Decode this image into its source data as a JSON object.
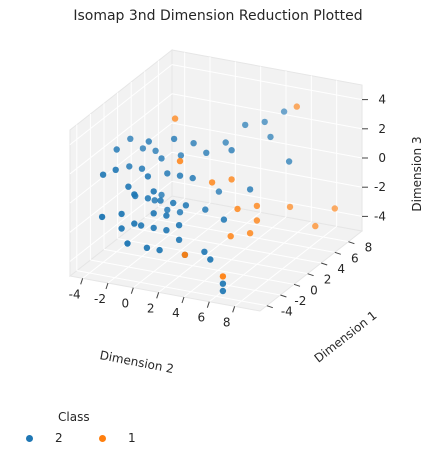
{
  "title": "Isomap 3nd Dimension Reduction Plotted",
  "legend": {
    "title": "Class",
    "entries": [
      {
        "label": "2",
        "color": "#1f77b4"
      },
      {
        "label": "1",
        "color": "#ff7f0e"
      }
    ]
  },
  "chart_data": {
    "type": "scatter",
    "projection": "3d",
    "title": "Isomap 3nd Dimension Reduction Plotted",
    "xlabel": "Dimension 2",
    "ylabel": "Dimension 1",
    "zlabel": "Dimension 3",
    "xlim": [
      -5,
      10
    ],
    "ylim": [
      -5,
      10
    ],
    "zlim": [
      -5,
      5
    ],
    "xticks": [
      -4,
      -2,
      0,
      2,
      4,
      6,
      8
    ],
    "yticks": [
      -4,
      -2,
      0,
      2,
      4,
      6,
      8
    ],
    "zticks": [
      -4,
      -2,
      0,
      2,
      4
    ],
    "grid": true,
    "legend_position": "bottom-left",
    "series": [
      {
        "name": "2",
        "color": "#1f77b4",
        "points": [
          [
            -4,
            2,
            2.0
          ],
          [
            -4,
            0,
            2.0
          ],
          [
            -4,
            -2,
            1.0
          ],
          [
            -3,
            0,
            1.0
          ],
          [
            -3,
            -2,
            1.5
          ],
          [
            -3,
            2,
            1.5
          ],
          [
            -2,
            -2,
            0.5
          ],
          [
            -2,
            0,
            1.0
          ],
          [
            -2,
            2,
            1.5
          ],
          [
            -1,
            -3,
            0.5
          ],
          [
            -1,
            -1,
            1.0
          ],
          [
            -1,
            1,
            1.5
          ],
          [
            0,
            -2,
            0.5
          ],
          [
            0,
            0,
            1.0
          ],
          [
            0,
            2,
            1.5
          ],
          [
            1,
            2,
            2.5
          ],
          [
            1,
            0,
            1.0
          ],
          [
            2,
            0,
            1.0
          ],
          [
            2,
            2,
            2.0
          ],
          [
            3,
            3,
            2.5
          ],
          [
            4,
            4,
            3.5
          ],
          [
            4,
            2,
            2.5
          ],
          [
            5,
            5,
            3.5
          ],
          [
            6,
            4,
            3.0
          ],
          [
            6,
            6,
            4.0
          ],
          [
            -3,
            -4,
            -1.0
          ],
          [
            -2,
            -3,
            -1.0
          ],
          [
            -1,
            -3,
            -1.5
          ],
          [
            0,
            -2,
            -1.0
          ],
          [
            1,
            -2,
            -1.0
          ],
          [
            -2,
            -1,
            -0.5
          ],
          [
            -1,
            -1,
            -0.5
          ],
          [
            0,
            -1,
            -0.5
          ],
          [
            1,
            -1,
            -0.5
          ],
          [
            2,
            -1,
            -0.5
          ],
          [
            -1,
            0,
            -1.0
          ],
          [
            0,
            0,
            -1.5
          ],
          [
            1,
            0,
            -1.5
          ],
          [
            3,
            0,
            -1.0
          ],
          [
            3,
            2,
            -0.5
          ],
          [
            -2,
            -3,
            -2.0
          ],
          [
            -1,
            -2,
            -2.0
          ],
          [
            0,
            -2,
            -2.0
          ],
          [
            1,
            -2,
            -2.0
          ],
          [
            2,
            -2,
            -2.5
          ],
          [
            -1,
            -4,
            -2.5
          ],
          [
            0,
            -3,
            -3.0
          ],
          [
            1,
            -3,
            -3.0
          ],
          [
            3,
            -3,
            -3.0
          ],
          [
            4,
            -2,
            -3.0
          ],
          [
            2,
            -2,
            -1.5
          ],
          [
            5,
            -1,
            -1.0
          ],
          [
            6,
            1,
            0.5
          ],
          [
            8,
            3,
            2.0
          ],
          [
            5,
            -3,
            -3.0
          ],
          [
            6,
            -3,
            -4.5
          ],
          [
            6,
            -3,
            -5.0
          ],
          [
            -2,
            1,
            2.5
          ],
          [
            0,
            1,
            3.0
          ],
          [
            -1,
            1,
            -1.0
          ]
        ]
      },
      {
        "name": "1",
        "color": "#ff7f0e",
        "points": [
          [
            -1,
            3,
            3.5
          ],
          [
            1,
            0,
            2.0
          ],
          [
            3,
            1,
            0.5
          ],
          [
            7,
            6,
            4.5
          ],
          [
            4,
            2,
            0.5
          ],
          [
            5,
            1,
            -1.0
          ],
          [
            6,
            2,
            -1.0
          ],
          [
            6,
            1,
            -2.5
          ],
          [
            5,
            0,
            -2.5
          ],
          [
            3,
            -3,
            -3.0
          ],
          [
            7,
            5,
            -2.0
          ],
          [
            6,
            -3,
            -4.0
          ],
          [
            10,
            6,
            -2.0
          ],
          [
            9,
            5,
            -3.0
          ],
          [
            6,
            2,
            -2.0
          ]
        ]
      }
    ]
  }
}
